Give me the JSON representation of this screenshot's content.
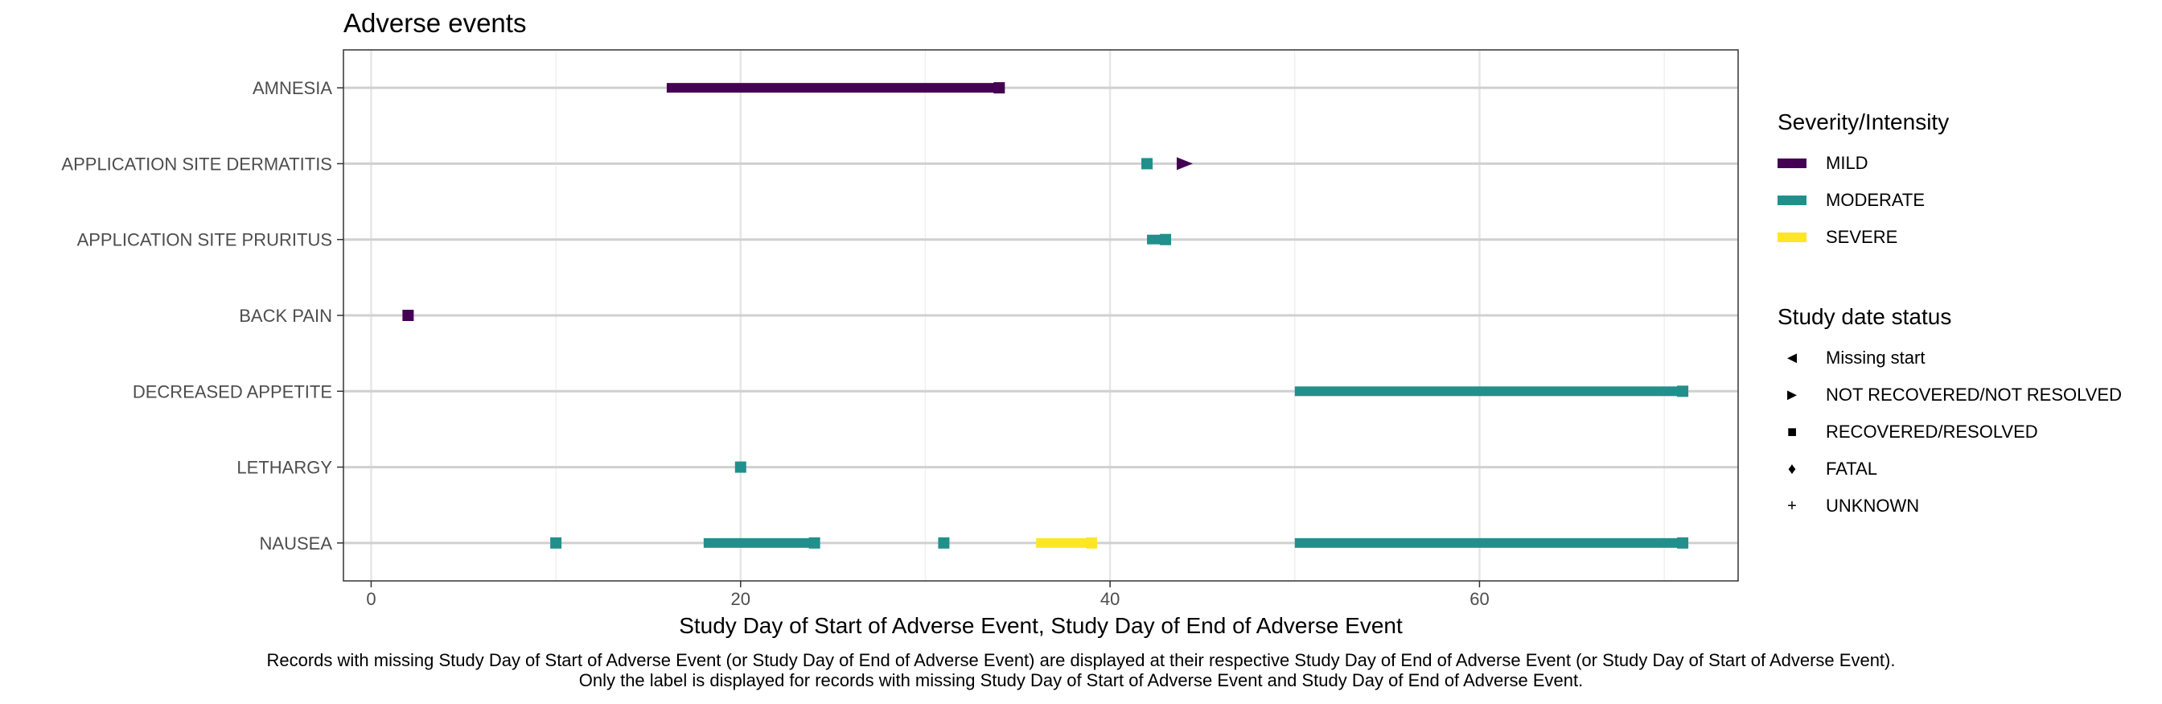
{
  "chart_data": {
    "type": "timeline",
    "title": "Adverse events",
    "xlabel": "Study Day of Start of Adverse Event, Study Day of End of Adverse Event",
    "ylabel": "",
    "xlim": [
      -1.5,
      74
    ],
    "xticks": [
      0,
      20,
      40,
      60
    ],
    "grid": true,
    "legend_position": "right",
    "categories": [
      "AMNESIA",
      "APPLICATION SITE DERMATITIS",
      "APPLICATION SITE PRURITUS",
      "BACK PAIN",
      "DECREASED APPETITE",
      "LETHARGY",
      "NAUSEA"
    ],
    "colors": {
      "MILD": "#440154",
      "MODERATE": "#21908C",
      "SEVERE": "#FDE725"
    },
    "events": [
      {
        "term": "AMNESIA",
        "start": 16,
        "end": 34,
        "severity": "MILD",
        "status": "RECOVERED/RESOLVED"
      },
      {
        "term": "APPLICATION SITE DERMATITIS",
        "start": 42,
        "end": 42,
        "severity": "MODERATE",
        "status": "RECOVERED/RESOLVED"
      },
      {
        "term": "APPLICATION SITE DERMATITIS",
        "start": 44,
        "end": 44,
        "severity": "MILD",
        "status": "NOT RECOVERED/NOT RESOLVED"
      },
      {
        "term": "APPLICATION SITE PRURITUS",
        "start": 42,
        "end": 43,
        "severity": "MODERATE",
        "status": "RECOVERED/RESOLVED"
      },
      {
        "term": "BACK PAIN",
        "start": 2,
        "end": 2,
        "severity": "MILD",
        "status": "RECOVERED/RESOLVED"
      },
      {
        "term": "DECREASED APPETITE",
        "start": 50,
        "end": 71,
        "severity": "MODERATE",
        "status": "RECOVERED/RESOLVED"
      },
      {
        "term": "LETHARGY",
        "start": 20,
        "end": 20,
        "severity": "MODERATE",
        "status": "RECOVERED/RESOLVED"
      },
      {
        "term": "NAUSEA",
        "start": 10,
        "end": 10,
        "severity": "MODERATE",
        "status": "RECOVERED/RESOLVED"
      },
      {
        "term": "NAUSEA",
        "start": 18,
        "end": 24,
        "severity": "MODERATE",
        "status": "RECOVERED/RESOLVED"
      },
      {
        "term": "NAUSEA",
        "start": 31,
        "end": 31,
        "severity": "MODERATE",
        "status": "RECOVERED/RESOLVED"
      },
      {
        "term": "NAUSEA",
        "start": 36,
        "end": 39,
        "severity": "SEVERE",
        "status": "RECOVERED/RESOLVED"
      },
      {
        "term": "NAUSEA",
        "start": 50,
        "end": 71,
        "severity": "MODERATE",
        "status": "RECOVERED/RESOLVED"
      }
    ],
    "legend": {
      "severity_title": "Severity/Intensity",
      "severity": [
        "MILD",
        "MODERATE",
        "SEVERE"
      ],
      "status_title": "Study date status",
      "status": [
        {
          "label": "Missing start",
          "shape": "triangle-left"
        },
        {
          "label": "NOT RECOVERED/NOT RESOLVED",
          "shape": "triangle-right"
        },
        {
          "label": "RECOVERED/RESOLVED",
          "shape": "square"
        },
        {
          "label": "FATAL",
          "shape": "diamond"
        },
        {
          "label": "UNKNOWN",
          "shape": "plus"
        }
      ]
    },
    "caption": [
      "Records with missing Study Day of Start of Adverse Event (or Study Day of End of Adverse Event) are displayed at their respective Study Day of End of Adverse Event (or Study Day of Start of Adverse Event).",
      "Only the label is displayed for records with missing Study Day of Start of Adverse Event and Study Day of End of Adverse Event."
    ]
  }
}
